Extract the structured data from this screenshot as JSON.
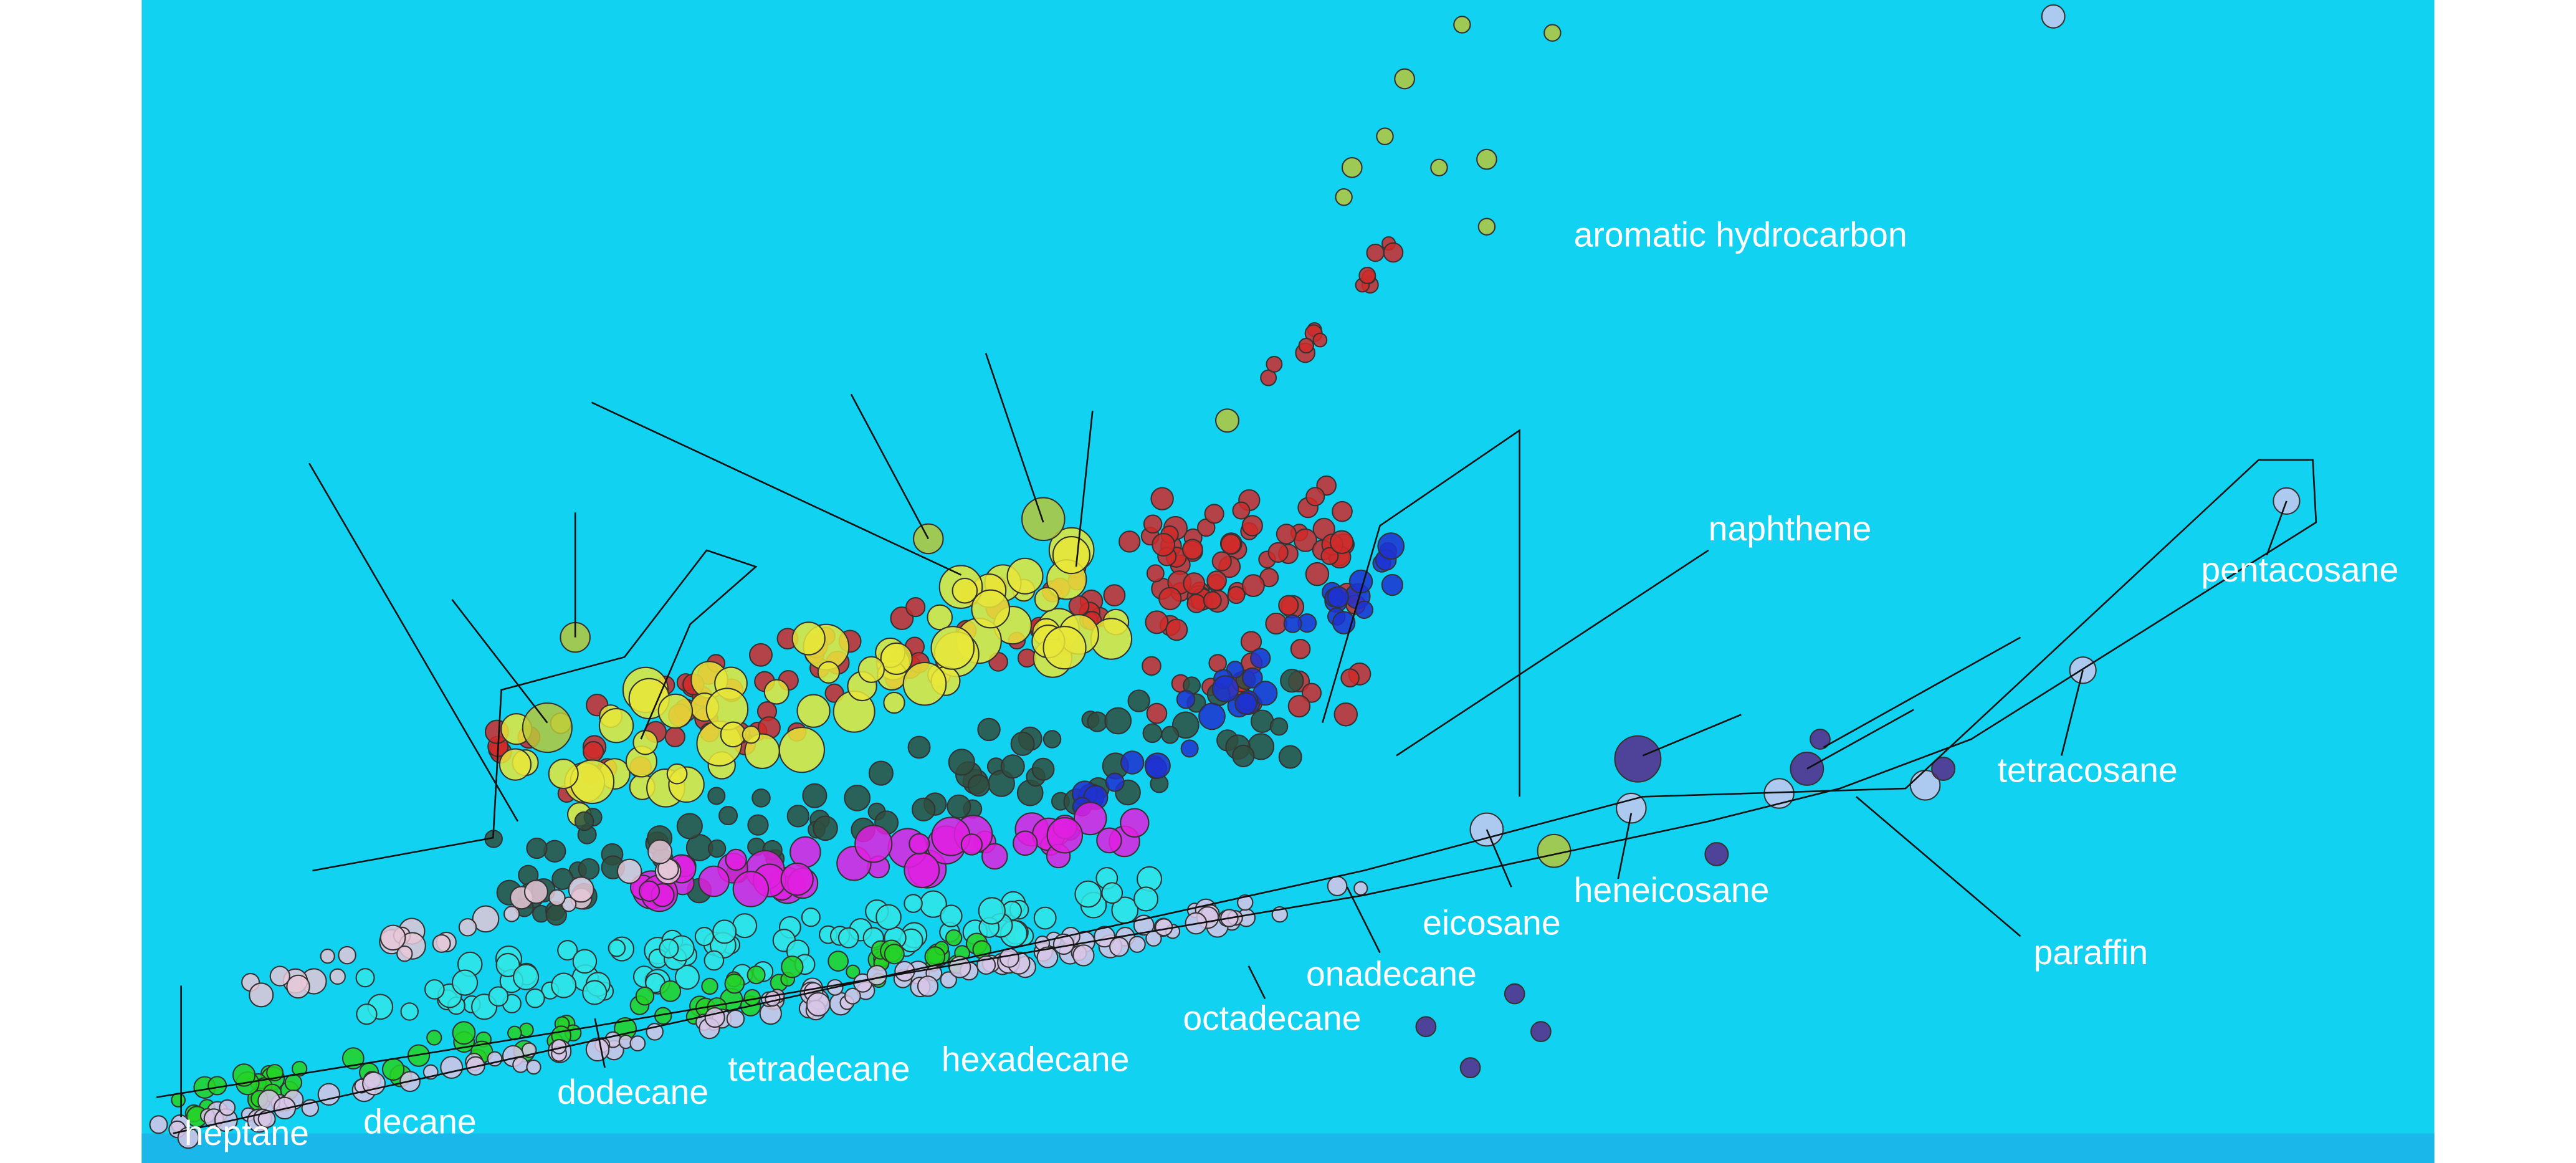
{
  "labels": [
    "aromatic hydrocarbon",
    "naphthene",
    "pentacosane",
    "tetracosane",
    "paraffin",
    "heneicosane",
    "eicosane",
    "onadecane",
    "octadecane",
    "hexadecane",
    "tetradecane",
    "dodecane",
    "decane",
    "heptane"
  ]
}
